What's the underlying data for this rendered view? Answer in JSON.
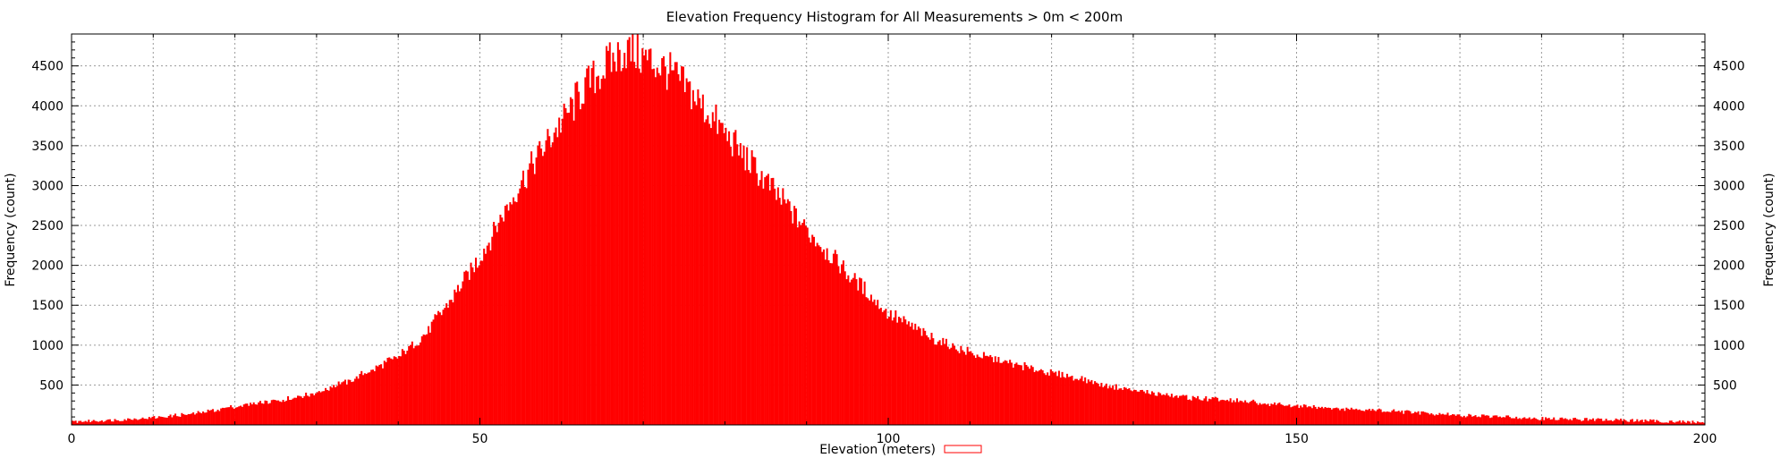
{
  "chart_data": {
    "type": "bar",
    "title": "Elevation Frequency Histogram for All Measurements > 0m < 200m",
    "xlabel": "Elevation (meters)",
    "ylabel": "Frequency (count)",
    "y2label": "Frequency (count)",
    "legend": {
      "label": "Elevation (meters)",
      "placement": "bottom-center",
      "swatch_style": "outline"
    },
    "xlim": [
      0,
      200
    ],
    "ylim": [
      0,
      4900
    ],
    "x_ticks": [
      0,
      50,
      100,
      150,
      200
    ],
    "y_ticks": [
      500,
      1000,
      1500,
      2000,
      2500,
      3000,
      3500,
      4000,
      4500
    ],
    "y2_ticks": [
      500,
      1000,
      1500,
      2000,
      2500,
      3000,
      3500,
      4000,
      4500
    ],
    "grid": true,
    "bar_color": "#ff0000",
    "bin_width": 0.2,
    "profile_x": [
      0,
      5,
      10,
      15,
      20,
      25,
      30,
      35,
      40,
      43,
      46,
      50,
      55,
      60,
      63,
      66,
      68,
      70,
      73,
      76,
      80,
      85,
      90,
      95,
      100,
      105,
      110,
      115,
      120,
      125,
      130,
      135,
      140,
      145,
      150,
      155,
      160,
      165,
      170,
      175,
      180,
      185,
      190,
      195,
      200
    ],
    "profile_y": [
      40,
      60,
      90,
      140,
      230,
      300,
      400,
      600,
      850,
      1100,
      1500,
      2100,
      3050,
      3800,
      4250,
      4550,
      4700,
      4600,
      4450,
      4150,
      3650,
      3050,
      2450,
      1900,
      1400,
      1100,
      900,
      770,
      650,
      540,
      430,
      360,
      320,
      280,
      240,
      210,
      180,
      150,
      120,
      100,
      80,
      70,
      60,
      45,
      30
    ]
  }
}
